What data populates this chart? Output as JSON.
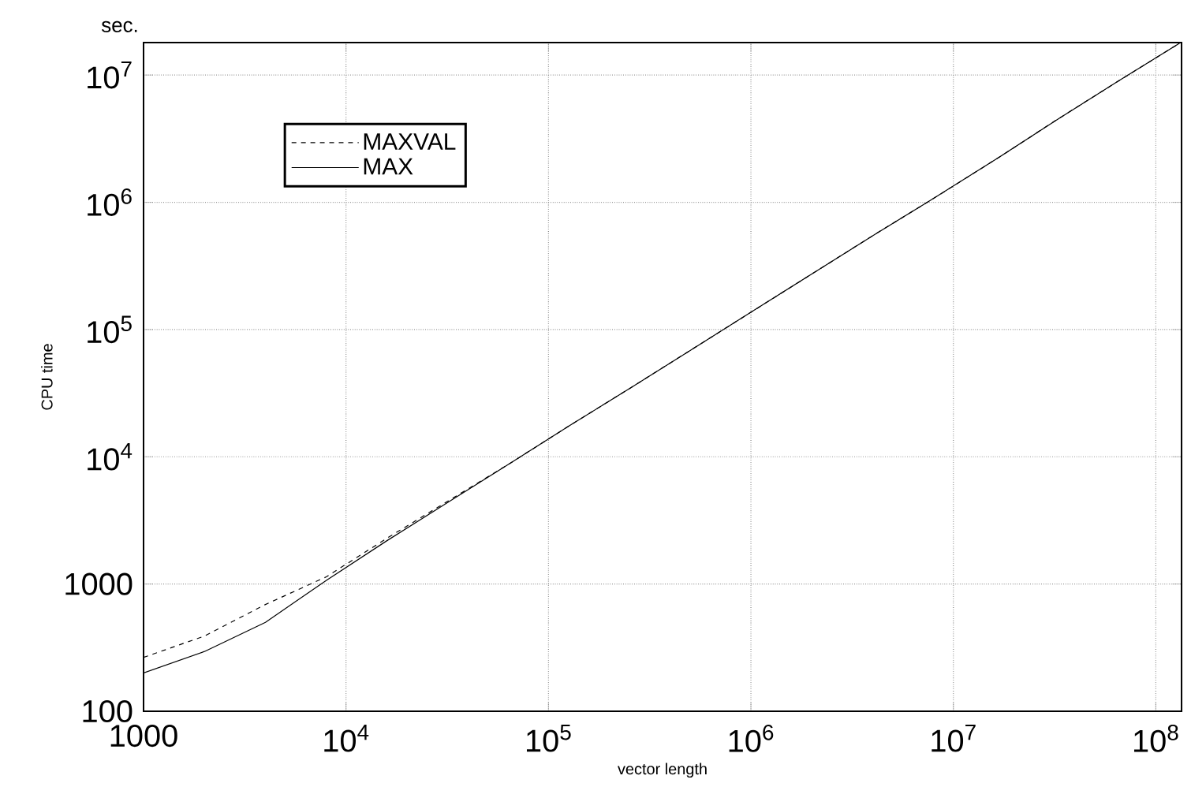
{
  "chart_data": {
    "type": "line",
    "xlabel": "vector length",
    "ylabel": "CPU time",
    "annotations": [
      "sec."
    ],
    "x": [
      1000,
      2000,
      4000,
      8000,
      16000,
      32000,
      64000,
      128000,
      256000,
      512000,
      1024000,
      2048000,
      4096000,
      8192000,
      16384000,
      32768000,
      65536000,
      131072000
    ],
    "series": [
      {
        "name": "MAXVAL",
        "color": "#000000",
        "line_style": "dashed",
        "values": [
          265,
          390,
          690,
          1140,
          2300,
          4500,
          8800,
          17700,
          35000,
          70000,
          140000,
          280000,
          560000,
          1100000,
          2200000,
          4500000,
          9000000,
          17800000
        ]
      },
      {
        "name": "MAX",
        "color": "#000000",
        "line_style": "solid",
        "values": [
          200,
          295,
          500,
          1070,
          2200,
          4400,
          8800,
          17700,
          35000,
          70000,
          140000,
          280000,
          560000,
          1100000,
          2200000,
          4500000,
          9000000,
          17800000
        ]
      }
    ],
    "log": "xy",
    "xlim": [
      1000,
      134000000
    ],
    "ylim": [
      100,
      18000000
    ],
    "xticks": [
      1000,
      {
        "value": 10000,
        "label": "10$^{4}$"
      },
      {
        "value": 100000,
        "label": "10$^{5}$"
      },
      {
        "value": 1000000,
        "label": "10$^{6}$"
      },
      {
        "value": 10000000,
        "label": "10$^{7}$"
      },
      {
        "value": 100000000,
        "label": "10$^{8}$"
      }
    ],
    "yticks": [
      100,
      1000,
      {
        "value": 10000,
        "label": "10$^{4}$"
      },
      {
        "value": 100000,
        "label": "10$^{5}$"
      },
      {
        "value": 1000000,
        "label": "10$^{6}$"
      },
      {
        "value": 10000000,
        "label": "10$^{7}$"
      }
    ],
    "grid": true,
    "legend": "top left",
    "marker": "none"
  }
}
